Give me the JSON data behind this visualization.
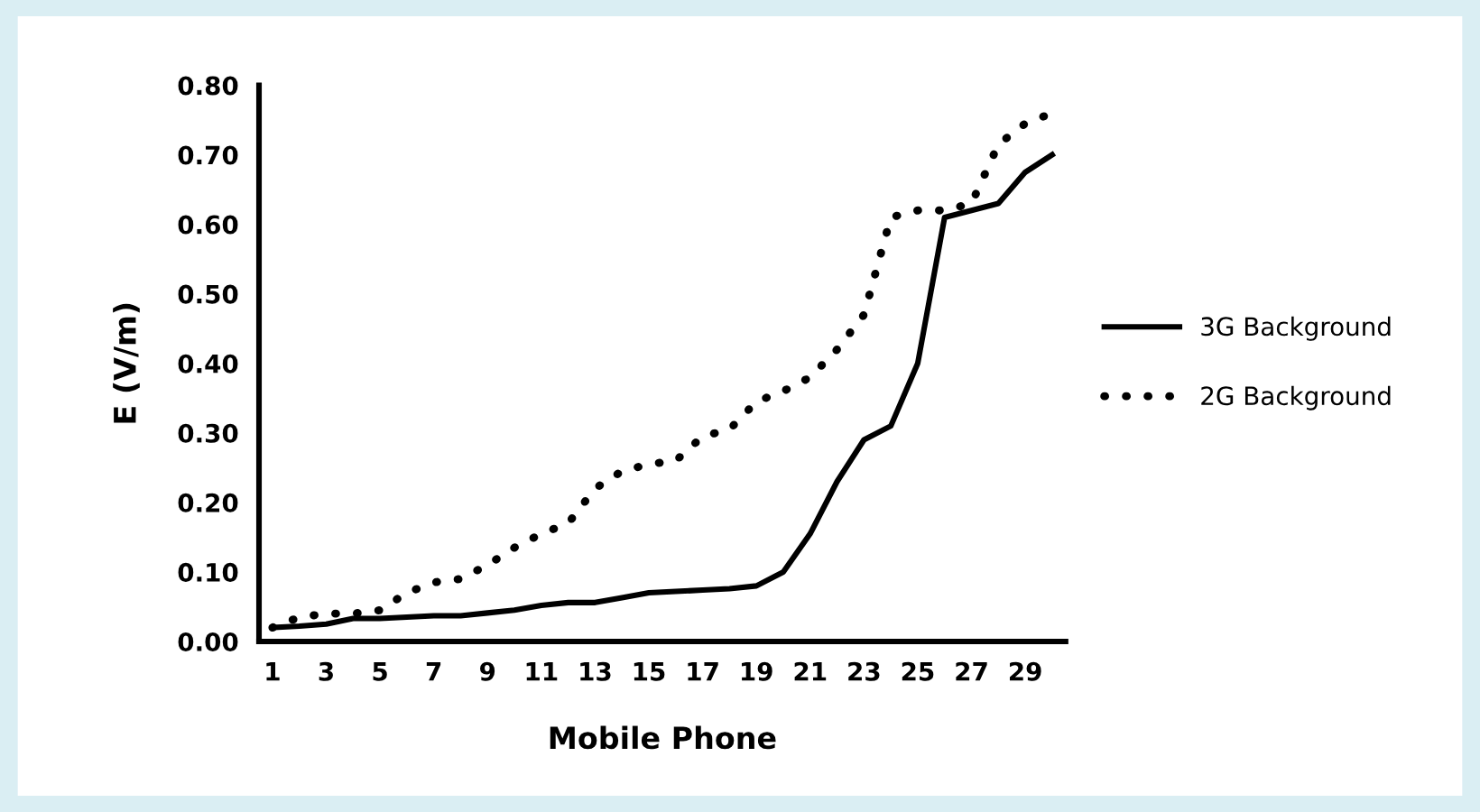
{
  "chart_data": {
    "type": "line",
    "xlabel": "Mobile Phone",
    "ylabel": "E (V/m)",
    "categories": [
      "1",
      null,
      "3",
      null,
      "5",
      null,
      "7",
      null,
      "9",
      null,
      "11",
      null,
      "13",
      null,
      "15",
      null,
      "17",
      null,
      "19",
      null,
      "21",
      null,
      "23",
      null,
      "25",
      null,
      "27",
      null,
      "29",
      null
    ],
    "series": [
      {
        "name": "3G Background",
        "color": "#000000",
        "line_style": "solid",
        "values": [
          0.02,
          0.022,
          0.025,
          0.033,
          0.033,
          0.035,
          0.037,
          0.037,
          0.041,
          0.045,
          0.052,
          0.056,
          0.056,
          0.063,
          0.07,
          0.072,
          0.074,
          0.076,
          0.08,
          0.1,
          0.155,
          0.23,
          0.29,
          0.31,
          0.4,
          0.61,
          0.62,
          0.63,
          0.675,
          0.7
        ]
      },
      {
        "name": "2G Background",
        "color": "#000000",
        "line_style": "dotted",
        "values": [
          0.02,
          0.035,
          0.04,
          0.04,
          0.045,
          0.07,
          0.085,
          0.09,
          0.11,
          0.135,
          0.155,
          0.17,
          0.22,
          0.245,
          0.255,
          0.26,
          0.295,
          0.305,
          0.345,
          0.36,
          0.38,
          0.42,
          0.47,
          0.61,
          0.62,
          0.62,
          0.63,
          0.715,
          0.745,
          0.76
        ]
      }
    ],
    "ylim": [
      0,
      0.8
    ],
    "yticks": [
      {
        "value": 0,
        "label": "0.00"
      },
      {
        "value": 0.1,
        "label": "0.10"
      },
      {
        "value": 0.2,
        "label": "0.20"
      },
      {
        "value": 0.3,
        "label": "0.30"
      },
      {
        "value": 0.4,
        "label": "0.40"
      },
      {
        "value": 0.5,
        "label": "0.50"
      },
      {
        "value": 0.6,
        "label": "0.60"
      },
      {
        "value": 0.7,
        "label": "0.70"
      },
      {
        "value": 0.8,
        "label": "0.80"
      }
    ],
    "grid": false,
    "legend": "right",
    "marker": "none"
  }
}
